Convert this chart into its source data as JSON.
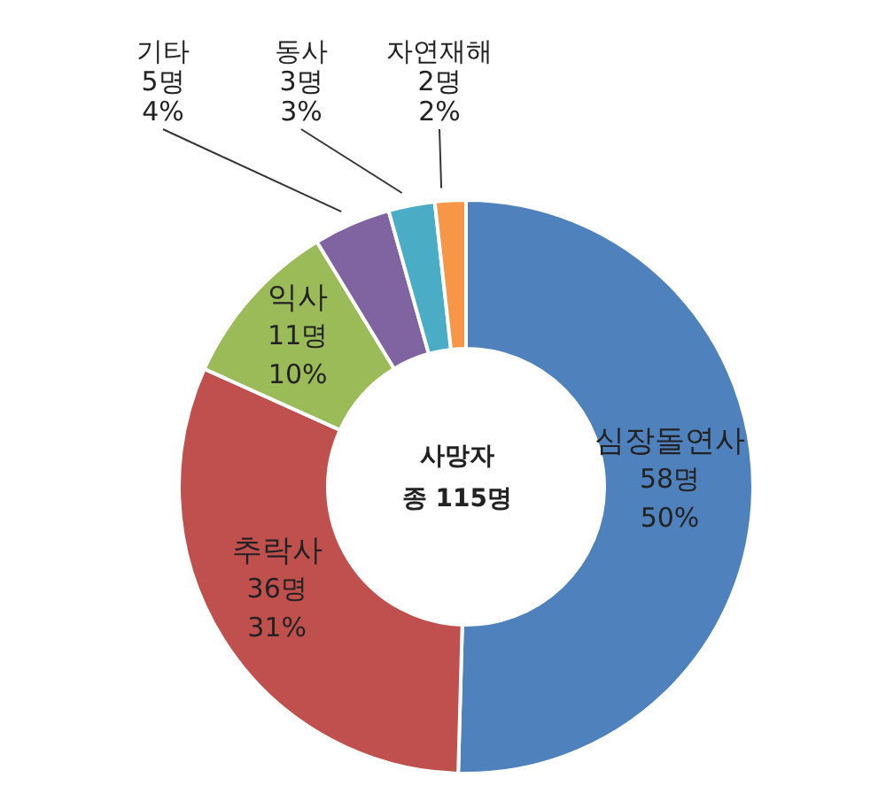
{
  "chart_data": {
    "type": "donut",
    "title": "사망자",
    "subtitle": "종 115명",
    "categories": [
      "심장돌연사",
      "추락사",
      "익사",
      "기타",
      "동사",
      "자연재해"
    ],
    "values": [
      58,
      36,
      11,
      5,
      3,
      2
    ],
    "value_labels": [
      "58명\n50%",
      "36명\n31%",
      "11명\n10%",
      "5명\n4%",
      "3명\n3%",
      "2명\n2%"
    ],
    "colors": [
      "#4f81bd",
      "#c0504d",
      "#9bbb59",
      "#8064a2",
      "#4bacc6",
      "#f79646"
    ],
    "legend": false
  }
}
